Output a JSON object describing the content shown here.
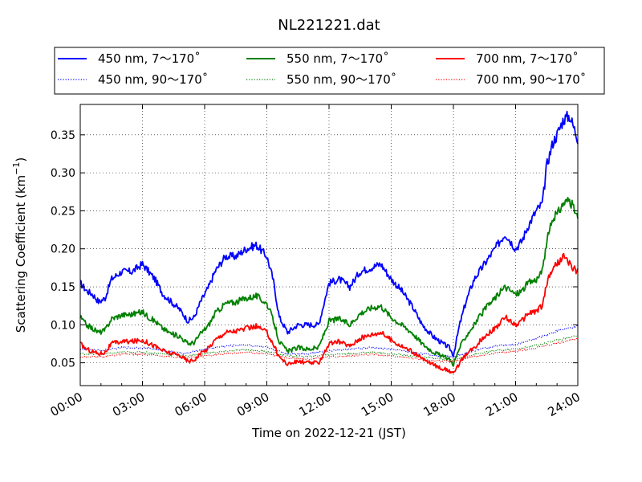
{
  "chart_data": {
    "type": "line",
    "title": "NL221221.dat",
    "xlabel": "Time on 2022-12-21 (JST)",
    "ylabel": "Scattering Coefficient (km",
    "ylabel_sup": "−1",
    "ylabel_end": ")",
    "xlim": [
      0,
      24
    ],
    "ylim": [
      0.02,
      0.39
    ],
    "x_unit": "hour",
    "x_ticks": [
      0,
      3,
      6,
      9,
      12,
      15,
      18,
      21,
      24
    ],
    "x_tick_labels": [
      "00:00",
      "03:00",
      "06:00",
      "09:00",
      "12:00",
      "15:00",
      "18:00",
      "21:00",
      "24:00"
    ],
    "y_ticks": [
      0.05,
      0.1,
      0.15,
      0.2,
      0.25,
      0.3,
      0.35
    ],
    "y_tick_labels": [
      "0.05",
      "0.10",
      "0.15",
      "0.20",
      "0.25",
      "0.30",
      "0.35"
    ],
    "grid": true,
    "legend_position": "top",
    "series": [
      {
        "name": "450 nm, 7～170˚",
        "color": "#0000ff",
        "style": "solid",
        "x": [
          0,
          0.3,
          0.6,
          0.9,
          1.2,
          1.5,
          2,
          2.5,
          3,
          3.3,
          3.6,
          4,
          4.4,
          4.8,
          5.2,
          5.5,
          5.8,
          6.2,
          6.5,
          7,
          7.5,
          8,
          8.5,
          9,
          9.3,
          9.6,
          10,
          10.5,
          11,
          11.5,
          12,
          12.5,
          13,
          13.5,
          14,
          14.5,
          15,
          15.5,
          16,
          16.5,
          17,
          17.5,
          17.8,
          18,
          18.3,
          18.6,
          19,
          19.5,
          20,
          20.5,
          21,
          21.3,
          21.6,
          22,
          22.3,
          22.5,
          22.8,
          23,
          23.3,
          23.6,
          24
        ],
        "y": [
          0.155,
          0.145,
          0.14,
          0.13,
          0.135,
          0.16,
          0.17,
          0.17,
          0.18,
          0.17,
          0.16,
          0.14,
          0.13,
          0.12,
          0.105,
          0.11,
          0.13,
          0.15,
          0.17,
          0.19,
          0.19,
          0.2,
          0.205,
          0.19,
          0.16,
          0.11,
          0.09,
          0.1,
          0.1,
          0.1,
          0.155,
          0.16,
          0.15,
          0.17,
          0.175,
          0.18,
          0.16,
          0.145,
          0.125,
          0.1,
          0.085,
          0.075,
          0.07,
          0.06,
          0.1,
          0.13,
          0.16,
          0.18,
          0.2,
          0.22,
          0.2,
          0.21,
          0.23,
          0.25,
          0.26,
          0.31,
          0.34,
          0.35,
          0.37,
          0.375,
          0.345
        ]
      },
      {
        "name": "450 nm, 90～170˚",
        "color": "#0000ff",
        "style": "dotted",
        "x": [
          0,
          1,
          2,
          3,
          4,
          5,
          6,
          7,
          8,
          9,
          10,
          11,
          12,
          13,
          14,
          15,
          16,
          17,
          18,
          19,
          20,
          21,
          22,
          23,
          24
        ],
        "y": [
          0.068,
          0.066,
          0.07,
          0.07,
          0.066,
          0.062,
          0.068,
          0.072,
          0.074,
          0.07,
          0.062,
          0.062,
          0.066,
          0.068,
          0.07,
          0.068,
          0.064,
          0.06,
          0.058,
          0.066,
          0.072,
          0.074,
          0.082,
          0.092,
          0.098
        ]
      },
      {
        "name": "550 nm, 7～170˚",
        "color": "#008000",
        "style": "solid",
        "x": [
          0,
          0.3,
          0.6,
          0.9,
          1.2,
          1.5,
          2,
          2.5,
          3,
          3.3,
          3.6,
          4,
          4.4,
          4.8,
          5.2,
          5.5,
          5.8,
          6.2,
          6.5,
          7,
          7.5,
          8,
          8.5,
          9,
          9.3,
          9.6,
          10,
          10.5,
          11,
          11.5,
          12,
          12.5,
          13,
          13.5,
          14,
          14.5,
          15,
          15.5,
          16,
          16.5,
          17,
          17.5,
          17.8,
          18,
          18.3,
          18.6,
          19,
          19.5,
          20,
          20.5,
          21,
          21.3,
          21.6,
          22,
          22.3,
          22.5,
          22.8,
          23,
          23.3,
          23.6,
          24
        ],
        "y": [
          0.11,
          0.1,
          0.095,
          0.09,
          0.093,
          0.108,
          0.113,
          0.114,
          0.117,
          0.11,
          0.105,
          0.095,
          0.088,
          0.085,
          0.075,
          0.077,
          0.088,
          0.1,
          0.115,
          0.128,
          0.13,
          0.135,
          0.138,
          0.128,
          0.107,
          0.078,
          0.065,
          0.07,
          0.068,
          0.07,
          0.105,
          0.108,
          0.1,
          0.115,
          0.122,
          0.125,
          0.11,
          0.1,
          0.09,
          0.075,
          0.065,
          0.058,
          0.055,
          0.048,
          0.07,
          0.085,
          0.1,
          0.12,
          0.135,
          0.15,
          0.14,
          0.145,
          0.155,
          0.16,
          0.17,
          0.21,
          0.24,
          0.245,
          0.26,
          0.265,
          0.24
        ]
      },
      {
        "name": "550 nm, 90～170˚",
        "color": "#008000",
        "style": "dotted",
        "x": [
          0,
          1,
          2,
          3,
          4,
          5,
          6,
          7,
          8,
          9,
          10,
          11,
          12,
          13,
          14,
          15,
          16,
          17,
          18,
          19,
          20,
          21,
          22,
          23,
          24
        ],
        "y": [
          0.062,
          0.061,
          0.064,
          0.064,
          0.062,
          0.059,
          0.062,
          0.065,
          0.067,
          0.065,
          0.059,
          0.058,
          0.061,
          0.062,
          0.064,
          0.062,
          0.059,
          0.056,
          0.054,
          0.061,
          0.066,
          0.068,
          0.073,
          0.08,
          0.086
        ]
      },
      {
        "name": "700 nm, 7～170˚",
        "color": "#ff0000",
        "style": "solid",
        "x": [
          0,
          0.3,
          0.6,
          0.9,
          1.2,
          1.5,
          2,
          2.5,
          3,
          3.3,
          3.6,
          4,
          4.4,
          4.8,
          5.2,
          5.5,
          5.8,
          6.2,
          6.5,
          7,
          7.5,
          8,
          8.5,
          9,
          9.3,
          9.6,
          10,
          10.5,
          11,
          11.5,
          12,
          12.5,
          13,
          13.5,
          14,
          14.5,
          15,
          15.5,
          16,
          16.5,
          17,
          17.5,
          17.8,
          18,
          18.3,
          18.6,
          19,
          19.5,
          20,
          20.5,
          21,
          21.3,
          21.6,
          22,
          22.3,
          22.5,
          22.8,
          23,
          23.3,
          23.6,
          24
        ],
        "y": [
          0.075,
          0.068,
          0.065,
          0.062,
          0.064,
          0.075,
          0.078,
          0.078,
          0.08,
          0.076,
          0.072,
          0.066,
          0.062,
          0.06,
          0.052,
          0.054,
          0.062,
          0.07,
          0.08,
          0.09,
          0.092,
          0.095,
          0.098,
          0.09,
          0.075,
          0.058,
          0.048,
          0.052,
          0.05,
          0.05,
          0.075,
          0.078,
          0.072,
          0.082,
          0.087,
          0.09,
          0.08,
          0.072,
          0.065,
          0.055,
          0.048,
          0.042,
          0.04,
          0.035,
          0.05,
          0.06,
          0.07,
          0.085,
          0.095,
          0.11,
          0.1,
          0.105,
          0.115,
          0.118,
          0.125,
          0.155,
          0.175,
          0.18,
          0.19,
          0.18,
          0.17
        ]
      },
      {
        "name": "700 nm, 90～170˚",
        "color": "#ff0000",
        "style": "dotted",
        "x": [
          0,
          1,
          2,
          3,
          4,
          5,
          6,
          7,
          8,
          9,
          10,
          11,
          12,
          13,
          14,
          15,
          16,
          17,
          18,
          19,
          20,
          21,
          22,
          23,
          24
        ],
        "y": [
          0.058,
          0.058,
          0.061,
          0.061,
          0.059,
          0.056,
          0.059,
          0.062,
          0.064,
          0.062,
          0.056,
          0.055,
          0.058,
          0.059,
          0.061,
          0.059,
          0.056,
          0.053,
          0.052,
          0.058,
          0.063,
          0.065,
          0.07,
          0.076,
          0.082
        ]
      }
    ]
  }
}
